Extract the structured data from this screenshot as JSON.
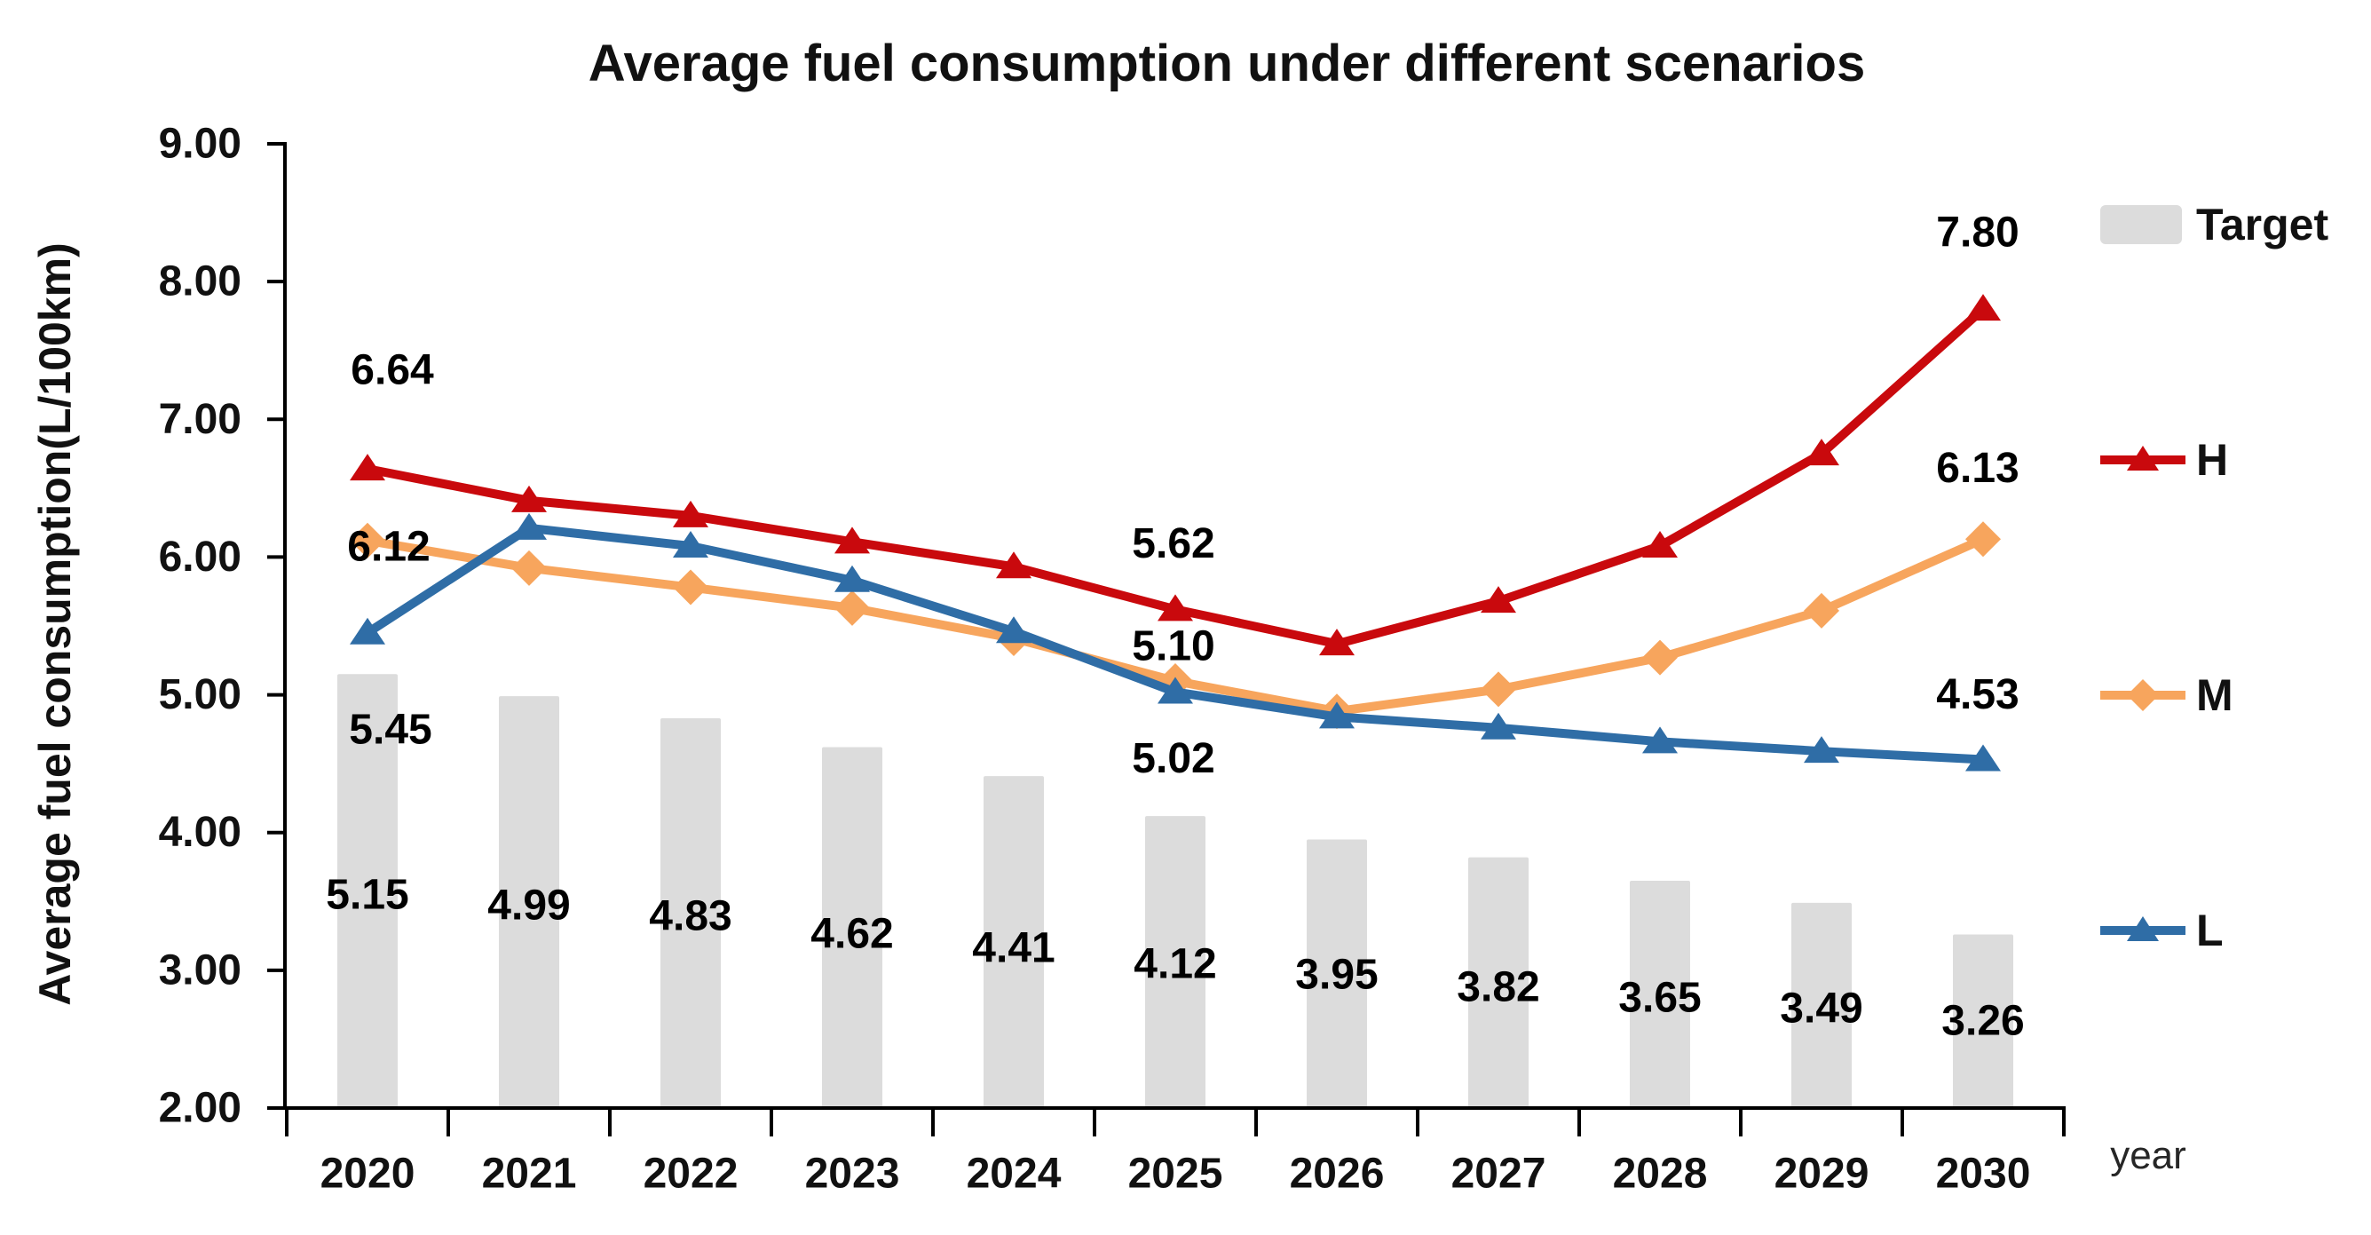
{
  "title": "Average fuel consumption under different scenarios",
  "y_axis": {
    "title": "Average fuel consumption(L/100km)",
    "tick_labels": [
      "9.00",
      "8.00",
      "7.00",
      "6.00",
      "5.00",
      "4.00",
      "3.00",
      "2.00"
    ],
    "min": 2.0,
    "max": 9.0
  },
  "x_axis": {
    "unit_label": "year",
    "categories": [
      "2020",
      "2021",
      "2022",
      "2023",
      "2024",
      "2025",
      "2026",
      "2027",
      "2028",
      "2029",
      "2030"
    ]
  },
  "legend": {
    "entries": [
      {
        "label": "Target",
        "type": "bar",
        "swatch_icon": "gray-bar-swatch",
        "color": "#DCDCDC"
      },
      {
        "label": "H",
        "type": "line",
        "swatch_icon": "red-triangle-line-swatch",
        "marker": "triangle",
        "color": "#C9090D"
      },
      {
        "label": "M",
        "type": "line",
        "swatch_icon": "orange-diamond-line-swatch",
        "marker": "diamond",
        "color": "#F7A55D"
      },
      {
        "label": "L",
        "type": "line",
        "swatch_icon": "blue-triangle-line-swatch",
        "marker": "triangle",
        "color": "#2F6DA6"
      }
    ]
  },
  "colors": {
    "target_bar": "#DCDCDC",
    "scenario_h": "#C9090D",
    "scenario_m": "#F7A55D",
    "scenario_l": "#2F6DA6",
    "axis": "#000000",
    "text": "#111111"
  },
  "chart_data": {
    "type": "combo bar+line",
    "title": "Average fuel consumption under different scenarios",
    "xlabel": "year",
    "ylabel": "Average fuel consumption(L/100km)",
    "ylim": [
      2.0,
      9.0
    ],
    "y_tick_step": 1.0,
    "grid": false,
    "legend_position": "right",
    "categories": [
      "2020",
      "2021",
      "2022",
      "2023",
      "2024",
      "2025",
      "2026",
      "2027",
      "2028",
      "2029",
      "2030"
    ],
    "bar_series": {
      "name": "Target",
      "color": "#DCDCDC",
      "values": [
        5.15,
        4.99,
        4.83,
        4.62,
        4.41,
        4.12,
        3.95,
        3.82,
        3.65,
        3.49,
        3.26
      ],
      "data_labels": [
        "5.15",
        "4.99",
        "4.83",
        "4.62",
        "4.41",
        "4.12",
        "3.95",
        "3.82",
        "3.65",
        "3.49",
        "3.26"
      ]
    },
    "line_series": [
      {
        "name": "H",
        "color": "#C9090D",
        "marker": "triangle",
        "values": [
          6.64,
          6.41,
          6.3,
          6.11,
          5.93,
          5.62,
          5.37,
          5.68,
          6.08,
          6.75,
          7.8
        ],
        "point_labels": {
          "0": "6.64",
          "5": "5.62",
          "10": "7.80"
        }
      },
      {
        "name": "M",
        "color": "#F7A55D",
        "marker": "diamond",
        "values": [
          6.12,
          5.92,
          5.78,
          5.63,
          5.41,
          5.1,
          4.88,
          5.04,
          5.27,
          5.61,
          6.13
        ],
        "point_labels": {
          "0": "6.12",
          "5": "5.10",
          "10": "6.13"
        }
      },
      {
        "name": "L",
        "color": "#2F6DA6",
        "marker": "triangle",
        "values": [
          5.45,
          6.21,
          6.08,
          5.83,
          5.46,
          5.02,
          4.84,
          4.76,
          4.66,
          4.59,
          4.53
        ],
        "point_labels": {
          "0": "5.45",
          "5": "5.02",
          "10": "4.53"
        }
      }
    ]
  }
}
